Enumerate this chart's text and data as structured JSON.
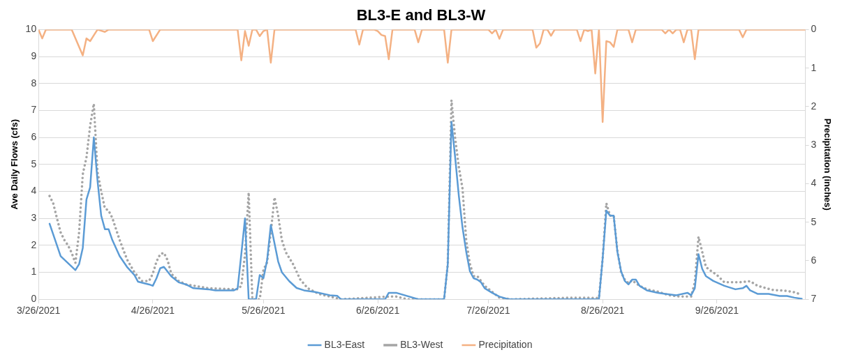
{
  "chart_data": {
    "type": "line",
    "title": "BL3-E and BL3-W",
    "ylabel": "Ave Daily Flows (cfs)",
    "y2label": "Precipitation (inches)",
    "xlim": [
      "2021-03-26",
      "2021-10-20"
    ],
    "xticks": [
      {
        "value": "2021-03-26",
        "label": "3/26/2021"
      },
      {
        "value": "2021-04-26",
        "label": "4/26/2021"
      },
      {
        "value": "2021-05-26",
        "label": "5/26/2021"
      },
      {
        "value": "2021-06-26",
        "label": "6/26/2021"
      },
      {
        "value": "2021-07-26",
        "label": "7/26/2021"
      },
      {
        "value": "2021-08-26",
        "label": "8/26/2021"
      },
      {
        "value": "2021-09-26",
        "label": "9/26/2021"
      }
    ],
    "ylim": [
      0,
      10
    ],
    "yticks": [
      0,
      1,
      2,
      3,
      4,
      5,
      6,
      7,
      8,
      9,
      10
    ],
    "y2lim": [
      7,
      0
    ],
    "y2ticks": [
      0,
      1,
      2,
      3,
      4,
      5,
      6,
      7
    ],
    "grid": "y",
    "legend": "bottom",
    "marker": "none",
    "series": [
      {
        "name": "BL3-East",
        "color": "#5b9bd5",
        "line_style": "solid",
        "x": [
          "2021-03-29",
          "2021-04-01",
          "2021-04-05",
          "2021-04-06",
          "2021-04-07",
          "2021-04-08",
          "2021-04-09",
          "2021-04-10",
          "2021-04-11",
          "2021-04-12",
          "2021-04-13",
          "2021-04-14",
          "2021-04-15",
          "2021-04-17",
          "2021-04-19",
          "2021-04-21",
          "2021-04-22",
          "2021-04-25",
          "2021-04-26",
          "2021-04-27",
          "2021-04-28",
          "2021-04-29",
          "2021-05-01",
          "2021-05-03",
          "2021-05-05",
          "2021-05-07",
          "2021-05-11",
          "2021-05-13",
          "2021-05-18",
          "2021-05-19",
          "2021-05-20",
          "2021-05-21",
          "2021-05-22",
          "2021-05-24",
          "2021-05-25",
          "2021-05-26",
          "2021-05-27",
          "2021-05-28",
          "2021-05-30",
          "2021-05-31",
          "2021-06-02",
          "2021-06-04",
          "2021-06-06",
          "2021-06-09",
          "2021-06-13",
          "2021-06-15",
          "2021-06-16",
          "2021-06-28",
          "2021-06-29",
          "2021-07-01",
          "2021-07-07",
          "2021-07-14",
          "2021-07-15",
          "2021-07-16",
          "2021-07-17",
          "2021-07-18",
          "2021-07-19",
          "2021-07-20",
          "2021-07-21",
          "2021-07-22",
          "2021-07-23",
          "2021-07-24",
          "2021-07-25",
          "2021-07-27",
          "2021-07-29",
          "2021-07-31",
          "2021-08-01",
          "2021-08-25",
          "2021-08-26",
          "2021-08-27",
          "2021-08-28",
          "2021-08-29",
          "2021-08-30",
          "2021-08-31",
          "2021-09-01",
          "2021-09-02",
          "2021-09-03",
          "2021-09-04",
          "2021-09-05",
          "2021-09-07",
          "2021-09-10",
          "2021-09-12",
          "2021-09-15",
          "2021-09-18",
          "2021-09-19",
          "2021-09-20",
          "2021-09-21",
          "2021-09-22",
          "2021-09-23",
          "2021-09-25",
          "2021-09-28",
          "2021-10-01",
          "2021-10-03",
          "2021-10-04",
          "2021-10-05",
          "2021-10-07",
          "2021-10-10",
          "2021-10-13",
          "2021-10-15",
          "2021-10-17",
          "2021-10-19"
        ],
        "values": [
          2.8,
          1.6,
          1.08,
          1.3,
          1.9,
          3.7,
          4.15,
          6.0,
          4.4,
          3.1,
          2.6,
          2.6,
          2.2,
          1.6,
          1.2,
          0.9,
          0.65,
          0.55,
          0.5,
          0.78,
          1.15,
          1.2,
          0.85,
          0.63,
          0.55,
          0.41,
          0.37,
          0.33,
          0.33,
          0.4,
          1.67,
          3.0,
          0,
          0,
          0.9,
          0.78,
          1.45,
          2.75,
          1.4,
          1.0,
          0.67,
          0.42,
          0.33,
          0.27,
          0.15,
          0.13,
          0,
          0,
          0.24,
          0.24,
          0,
          0,
          1.3,
          6.58,
          5.26,
          3.83,
          2.66,
          1.76,
          1.04,
          0.78,
          0.73,
          0.63,
          0.41,
          0.24,
          0.1,
          0.02,
          0,
          0,
          1.5,
          3.29,
          3.1,
          3.1,
          1.76,
          1.04,
          0.68,
          0.55,
          0.73,
          0.73,
          0.5,
          0.33,
          0.24,
          0.2,
          0.15,
          0.24,
          0.15,
          0.41,
          1.67,
          1.13,
          0.86,
          0.68,
          0.5,
          0.37,
          0.41,
          0.5,
          0.33,
          0.2,
          0.2,
          0.12,
          0.12,
          0.06,
          0.02
        ]
      },
      {
        "name": "BL3-West",
        "color": "#a5a5a5",
        "line_style": "dotted",
        "x": [
          "2021-03-29",
          "2021-03-30",
          "2021-03-31",
          "2021-04-01",
          "2021-04-02",
          "2021-04-03",
          "2021-04-04",
          "2021-04-05",
          "2021-04-06",
          "2021-04-07",
          "2021-04-08",
          "2021-04-09",
          "2021-04-10",
          "2021-04-11",
          "2021-04-12",
          "2021-04-13",
          "2021-04-14",
          "2021-04-15",
          "2021-04-17",
          "2021-04-19",
          "2021-04-21",
          "2021-04-23",
          "2021-04-25",
          "2021-04-26",
          "2021-04-27",
          "2021-04-28",
          "2021-04-29",
          "2021-04-30",
          "2021-05-01",
          "2021-05-03",
          "2021-05-05",
          "2021-05-11",
          "2021-05-19",
          "2021-05-20",
          "2021-05-21",
          "2021-05-22",
          "2021-05-23",
          "2021-05-24",
          "2021-05-25",
          "2021-05-26",
          "2021-05-27",
          "2021-05-28",
          "2021-05-29",
          "2021-05-30",
          "2021-05-31",
          "2021-06-01",
          "2021-06-03",
          "2021-06-05",
          "2021-06-07",
          "2021-06-10",
          "2021-06-16",
          "2021-06-29",
          "2021-07-01",
          "2021-07-04",
          "2021-07-14",
          "2021-07-15",
          "2021-07-16",
          "2021-07-17",
          "2021-07-18",
          "2021-07-19",
          "2021-07-20",
          "2021-07-21",
          "2021-07-22",
          "2021-07-23",
          "2021-07-24",
          "2021-07-25",
          "2021-07-27",
          "2021-07-29",
          "2021-08-01",
          "2021-08-18",
          "2021-08-25",
          "2021-08-26",
          "2021-08-27",
          "2021-08-28",
          "2021-08-29",
          "2021-08-30",
          "2021-08-31",
          "2021-09-01",
          "2021-09-02",
          "2021-09-03",
          "2021-09-05",
          "2021-09-07",
          "2021-09-10",
          "2021-09-13",
          "2021-09-16",
          "2021-09-19",
          "2021-09-20",
          "2021-09-21",
          "2021-09-22",
          "2021-09-23",
          "2021-09-24",
          "2021-09-26",
          "2021-09-28",
          "2021-09-30",
          "2021-10-02",
          "2021-10-05",
          "2021-10-07",
          "2021-10-11",
          "2021-10-13",
          "2021-10-15",
          "2021-10-17",
          "2021-10-19"
        ],
        "values": [
          3.83,
          3.55,
          3.0,
          2.48,
          2.2,
          2.0,
          1.72,
          1.35,
          2.48,
          4.63,
          5.26,
          6.44,
          7.25,
          4.72,
          4.0,
          3.37,
          3.29,
          3.02,
          2.2,
          1.48,
          1.0,
          0.68,
          0.68,
          0.95,
          1.4,
          1.67,
          1.72,
          1.45,
          0.95,
          0.68,
          0.55,
          0.41,
          0.37,
          0.5,
          1.67,
          3.96,
          0,
          0,
          0,
          1.09,
          1.37,
          2.48,
          3.78,
          3.1,
          2.2,
          1.76,
          1.31,
          0.73,
          0.41,
          0.2,
          0,
          0.1,
          0.1,
          0,
          0,
          1.3,
          7.38,
          5.98,
          4.9,
          4.1,
          2.2,
          1.31,
          0.86,
          0.86,
          0.68,
          0.5,
          0.28,
          0.06,
          0,
          0.06,
          0.05,
          1.5,
          3.56,
          3.1,
          3.1,
          1.8,
          1.0,
          0.73,
          0.6,
          0.7,
          0.5,
          0.37,
          0.28,
          0.15,
          0.1,
          0.1,
          0.63,
          2.32,
          1.76,
          1.2,
          1.09,
          0.9,
          0.63,
          0.63,
          0.63,
          0.67,
          0.5,
          0.35,
          0.33,
          0.31,
          0.26,
          0.17
        ]
      },
      {
        "name": "Precipitation",
        "color": "#f4b183",
        "line_style": "solid",
        "axis": "y2",
        "x": [
          "2021-03-26",
          "2021-03-27",
          "2021-03-28",
          "2021-04-04",
          "2021-04-07",
          "2021-04-08",
          "2021-04-09",
          "2021-04-10",
          "2021-04-11",
          "2021-04-13",
          "2021-04-14",
          "2021-04-25",
          "2021-04-26",
          "2021-04-28",
          "2021-05-19",
          "2021-05-20",
          "2021-05-21",
          "2021-05-22",
          "2021-05-23",
          "2021-05-24",
          "2021-05-25",
          "2021-05-26",
          "2021-05-27",
          "2021-05-28",
          "2021-05-29",
          "2021-06-20",
          "2021-06-21",
          "2021-06-22",
          "2021-06-25",
          "2021-06-26",
          "2021-06-27",
          "2021-06-28",
          "2021-06-29",
          "2021-06-30",
          "2021-07-06",
          "2021-07-07",
          "2021-07-08",
          "2021-07-14",
          "2021-07-15",
          "2021-07-16",
          "2021-07-26",
          "2021-07-27",
          "2021-07-28",
          "2021-07-29",
          "2021-07-30",
          "2021-08-07",
          "2021-08-08",
          "2021-08-09",
          "2021-08-10",
          "2021-08-11",
          "2021-08-12",
          "2021-08-13",
          "2021-08-19",
          "2021-08-20",
          "2021-08-21",
          "2021-08-22",
          "2021-08-23",
          "2021-08-24",
          "2021-08-25",
          "2021-08-26",
          "2021-08-27",
          "2021-08-28",
          "2021-08-29",
          "2021-08-30",
          "2021-09-02",
          "2021-09-03",
          "2021-09-04",
          "2021-09-11",
          "2021-09-12",
          "2021-09-13",
          "2021-09-14",
          "2021-09-15",
          "2021-09-16",
          "2021-09-17",
          "2021-09-18",
          "2021-09-19",
          "2021-09-20",
          "2021-09-21",
          "2021-10-02",
          "2021-10-03",
          "2021-10-04",
          "2021-10-20"
        ],
        "values": [
          0,
          0.23,
          0,
          0,
          0.67,
          0.23,
          0.3,
          0.15,
          0,
          0.06,
          0,
          0,
          0.3,
          0,
          0,
          0.8,
          0.04,
          0.42,
          0,
          0,
          0.17,
          0.04,
          0,
          0.86,
          0,
          0,
          0.39,
          0,
          0,
          0.04,
          0.14,
          0.17,
          0.77,
          0,
          0,
          0.33,
          0,
          0,
          0.86,
          0,
          0,
          0.1,
          0,
          0.24,
          0,
          0,
          0.47,
          0.36,
          0,
          0,
          0.16,
          0,
          0,
          0.3,
          0,
          0.04,
          0,
          1.14,
          0,
          2.4,
          0.3,
          0.33,
          0.45,
          0,
          0,
          0.33,
          0,
          0,
          0.1,
          0,
          0.1,
          0,
          0,
          0.33,
          0,
          0,
          0.77,
          0,
          0,
          0.2,
          0,
          0
        ]
      }
    ]
  }
}
